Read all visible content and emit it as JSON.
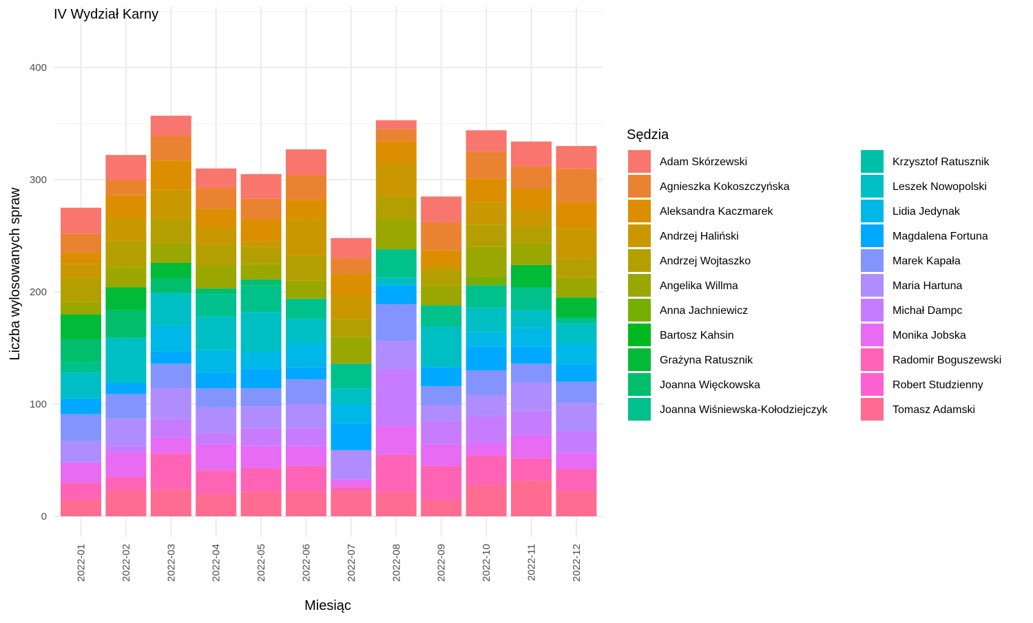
{
  "chart_data": {
    "type": "bar",
    "stacked": true,
    "title": "IV Wydział Karny",
    "xlabel": "Miesiąc",
    "ylabel": "Liczba wylosowanych spraw",
    "ylim": [
      0,
      440
    ],
    "yticks": [
      0,
      100,
      200,
      300,
      400
    ],
    "grid": true,
    "legend_title": "Sędzia",
    "legend_position": "right",
    "categories": [
      "2022-01",
      "2022-02",
      "2022-03",
      "2022-04",
      "2022-05",
      "2022-06",
      "2022-07",
      "2022-08",
      "2022-09",
      "2022-10",
      "2022-11",
      "2022-12"
    ],
    "series": [
      {
        "name": "Adam Skórzewski",
        "color": "#F8766D",
        "values": [
          23,
          22,
          18,
          17,
          22,
          23,
          18,
          8,
          23,
          19,
          22,
          20
        ]
      },
      {
        "name": "Agnieszka Kokoszczyńska",
        "color": "#EA8331",
        "values": [
          17,
          14,
          22,
          19,
          18,
          22,
          14,
          11,
          25,
          24,
          20,
          30
        ]
      },
      {
        "name": "Aleksandra Kaczmarek",
        "color": "#DB8E00",
        "values": [
          10,
          20,
          26,
          16,
          20,
          17,
          20,
          19,
          14,
          21,
          19,
          24
        ]
      },
      {
        "name": "Andrzej Haliński",
        "color": "#C99800",
        "values": [
          13,
          21,
          26,
          16,
          5,
          33,
          20,
          30,
          4,
          20,
          15,
          26
        ]
      },
      {
        "name": "Andrzej Wojtaszko",
        "color": "#B3A000",
        "values": [
          21,
          23,
          22,
          19,
          15,
          22,
          16,
          20,
          13,
          20,
          15,
          17
        ]
      },
      {
        "name": "Angelika Willma",
        "color": "#9AA700",
        "values": [
          11,
          18,
          17,
          20,
          14,
          16,
          24,
          27,
          18,
          26,
          19,
          18
        ]
      },
      {
        "name": "Anna Jachniewicz",
        "color": "#77AF00",
        "values": [
          0,
          0,
          0,
          0,
          0,
          0,
          0,
          0,
          0,
          8,
          0,
          0
        ]
      },
      {
        "name": "Bartosz Kahsin",
        "color": "#00B81F",
        "values": [
          0,
          0,
          0,
          0,
          0,
          0,
          0,
          0,
          0,
          0,
          0,
          0
        ]
      },
      {
        "name": "Grażyna Ratusznik",
        "color": "#00BA38",
        "values": [
          22,
          20,
          14,
          0,
          0,
          0,
          0,
          0,
          0,
          0,
          20,
          18
        ]
      },
      {
        "name": "Joanna Więckowska",
        "color": "#00BE6C",
        "values": [
          21,
          25,
          13,
          5,
          5,
          0,
          0,
          0,
          0,
          0,
          0,
          0
        ]
      },
      {
        "name": "Joanna Wiśniewska-Kołodziejczyk",
        "color": "#00C08B",
        "values": [
          9,
          0,
          0,
          20,
          24,
          18,
          22,
          25,
          19,
          20,
          20,
          5
        ]
      },
      {
        "name": "Krzysztof Ratusznik",
        "color": "#00C0AA",
        "values": [
          0,
          0,
          0,
          0,
          0,
          0,
          0,
          0,
          0,
          0,
          0,
          0
        ]
      },
      {
        "name": "Leszek Nowopolski",
        "color": "#00BFC4",
        "values": [
          23,
          40,
          29,
          30,
          36,
          22,
          14,
          7,
          36,
          22,
          16,
          18
        ]
      },
      {
        "name": "Lidia Jedynak",
        "color": "#00B8E7",
        "values": [
          0,
          0,
          23,
          20,
          15,
          21,
          17,
          0,
          0,
          13,
          17,
          19
        ]
      },
      {
        "name": "Magdalena Fortuna",
        "color": "#00A9FF",
        "values": [
          14,
          10,
          11,
          14,
          17,
          11,
          24,
          17,
          17,
          21,
          15,
          15
        ]
      },
      {
        "name": "Marek Kapała",
        "color": "#8494FF",
        "values": [
          24,
          22,
          22,
          17,
          16,
          22,
          0,
          33,
          17,
          22,
          17,
          19
        ]
      },
      {
        "name": "Maria Hartuna",
        "color": "#AF8DFF",
        "values": [
          19,
          24,
          27,
          23,
          19,
          21,
          26,
          25,
          14,
          19,
          25,
          25
        ]
      },
      {
        "name": "Michał Dampc",
        "color": "#C77CFF",
        "values": [
          0,
          6,
          17,
          10,
          16,
          16,
          0,
          51,
          21,
          24,
          22,
          20
        ]
      },
      {
        "name": "Monika Jobska",
        "color": "#E76BF3",
        "values": [
          18,
          22,
          14,
          23,
          20,
          18,
          7,
          25,
          19,
          11,
          20,
          14
        ]
      },
      {
        "name": "Radomir Boguszewski",
        "color": "#FF63B6",
        "values": [
          15,
          12,
          32,
          21,
          21,
          23,
          4,
          33,
          30,
          26,
          20,
          20
        ]
      },
      {
        "name": "Robert Studzienny",
        "color": "#FD61D1",
        "values": [
          0,
          0,
          0,
          0,
          0,
          0,
          0,
          0,
          0,
          0,
          0,
          0
        ]
      },
      {
        "name": "Tomasz Adamski",
        "color": "#FF6C91",
        "values": [
          15,
          23,
          24,
          20,
          22,
          22,
          22,
          22,
          15,
          28,
          32,
          22
        ]
      }
    ]
  }
}
